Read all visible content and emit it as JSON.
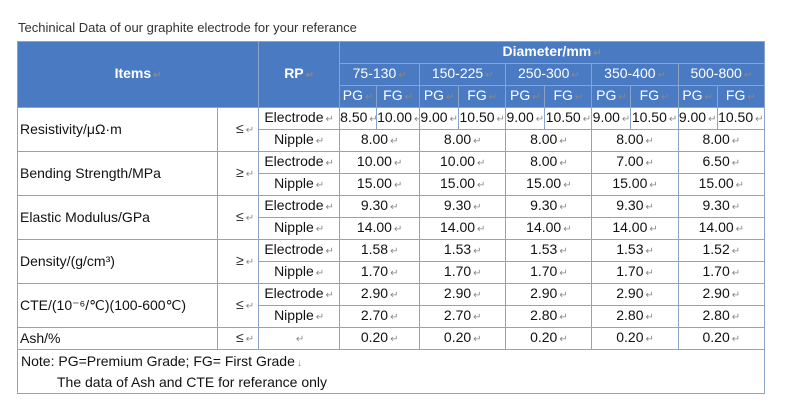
{
  "caption": "Techinical Data of our graphite electrode for your referance",
  "header": {
    "items": "Items",
    "rp": "RP",
    "diameter": "Diameter/mm",
    "ranges": [
      "75-130",
      "150-225",
      "250-300",
      "350-400",
      "500-800"
    ],
    "pg": "PG",
    "fg": "FG"
  },
  "rows": [
    {
      "property": "Resistivity/μΩ·m",
      "symbol": "≤",
      "electrode_label": "Electrode",
      "nipple_label": "Nipple",
      "electrode": [
        "8.50",
        "10.00",
        "9.00",
        "10.50",
        "9.00",
        "10.50",
        "9.00",
        "10.50",
        "9.00",
        "10.50"
      ],
      "nipple": [
        "8.00",
        "8.00",
        "8.00",
        "8.00",
        "8.00"
      ]
    },
    {
      "property": "Bending Strength/MPa",
      "symbol": "≥",
      "electrode_label": "Electrode",
      "nipple_label": "Nipple",
      "electrode": [
        "10.00",
        "10.00",
        "8.00",
        "7.00",
        "6.50"
      ],
      "nipple": [
        "15.00",
        "15.00",
        "15.00",
        "15.00",
        "15.00"
      ]
    },
    {
      "property": "Elastic Modulus/GPa",
      "symbol": "≤",
      "electrode_label": "Electrode",
      "nipple_label": "Nipple",
      "electrode": [
        "9.30",
        "9.30",
        "9.30",
        "9.30",
        "9.30"
      ],
      "nipple": [
        "14.00",
        "14.00",
        "14.00",
        "14.00",
        "14.00"
      ]
    },
    {
      "property": "Density/(g/cm³)",
      "symbol": "≥",
      "electrode_label": "Electrode",
      "nipple_label": "Nipple",
      "electrode": [
        "1.58",
        "1.53",
        "1.53",
        "1.53",
        "1.52"
      ],
      "nipple": [
        "1.70",
        "1.70",
        "1.70",
        "1.70",
        "1.70"
      ]
    },
    {
      "property": "CTE/(10⁻⁶/℃)(100-600℃)",
      "symbol": "≤",
      "electrode_label": "Electrode",
      "nipple_label": "Nipple",
      "electrode": [
        "2.90",
        "2.90",
        "2.90",
        "2.90",
        "2.90"
      ],
      "nipple": [
        "2.70",
        "2.70",
        "2.80",
        "2.80",
        "2.80"
      ]
    }
  ],
  "ash": {
    "property": "Ash/%",
    "symbol": "≤",
    "values": [
      "0.20",
      "0.20",
      "0.20",
      "0.20",
      "0.20"
    ]
  },
  "note": {
    "line1": "Note: PG=Premium Grade; FG= First Grade",
    "line2": "The data of Ash and CTE for referance only"
  }
}
